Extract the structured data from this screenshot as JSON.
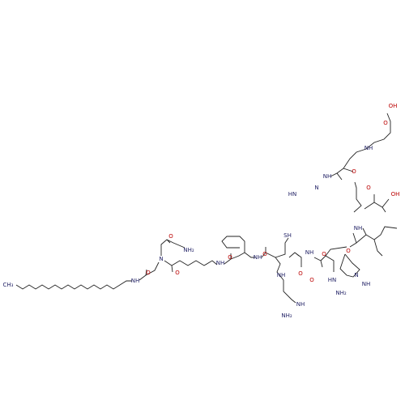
{
  "labels": [
    "OH",
    "O",
    "NH",
    "O",
    "NH",
    "OH",
    "O",
    "HN",
    "N",
    "NH",
    "N",
    "O",
    "O",
    "SH",
    "HN",
    "O",
    "NH",
    "O",
    "NH",
    "O",
    "NH",
    "O",
    "NH",
    "O",
    "N",
    "O",
    "NH₂",
    "O",
    "NH",
    "NH",
    "NH₂",
    "NH",
    "NH₂",
    "CH₃"
  ]
}
